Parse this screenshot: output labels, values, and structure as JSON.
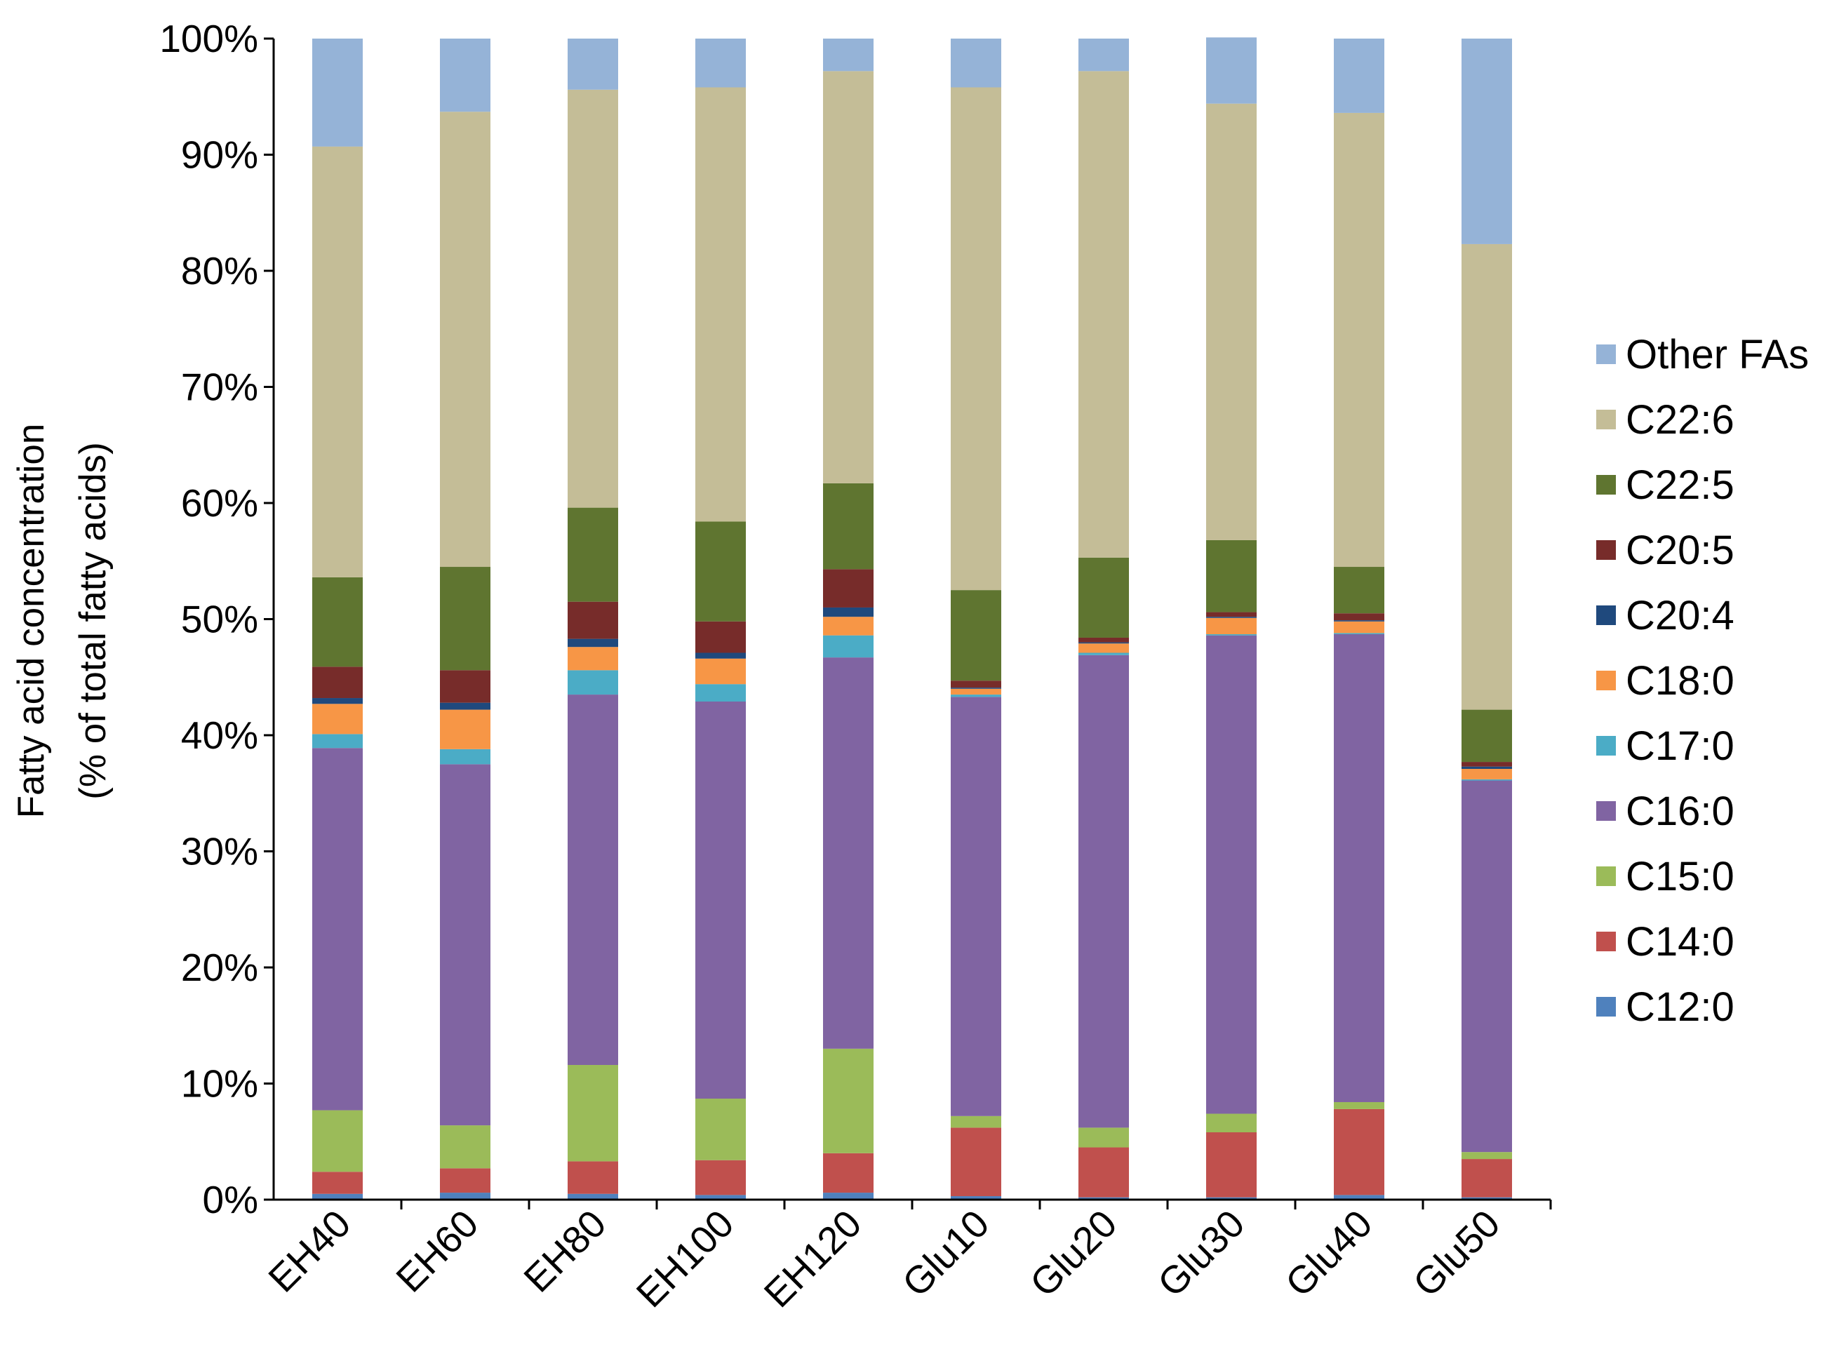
{
  "chart_data": {
    "type": "bar",
    "stacked": true,
    "title": "",
    "xlabel": "",
    "ylabel": "Fatty acid concentration",
    "ylabel_sub": "(% of total fatty acids)",
    "ylim": [
      0,
      100
    ],
    "grid": false,
    "legend_position": "right",
    "y_ticks": [
      "0%",
      "10%",
      "20%",
      "30%",
      "40%",
      "50%",
      "60%",
      "70%",
      "80%",
      "90%",
      "100%"
    ],
    "categories": [
      "EH40",
      "EH60",
      "EH80",
      "EH100",
      "EH120",
      "Glu10",
      "Glu20",
      "Glu30",
      "Glu40",
      "Glu50"
    ],
    "series": [
      {
        "name": "C12:0",
        "color": "#4F81BD",
        "values": [
          0.5,
          0.6,
          0.5,
          0.4,
          0.6,
          0.3,
          0.2,
          0.2,
          0.4,
          0.2
        ]
      },
      {
        "name": "C14:0",
        "color": "#C0504D",
        "values": [
          1.9,
          2.1,
          2.8,
          3.0,
          3.4,
          5.9,
          4.3,
          5.6,
          7.4,
          3.3
        ]
      },
      {
        "name": "C15:0",
        "color": "#9BBB59",
        "values": [
          5.3,
          3.7,
          8.3,
          5.3,
          9.0,
          1.0,
          1.7,
          1.6,
          0.6,
          0.6
        ]
      },
      {
        "name": "C16:0",
        "color": "#8064A2",
        "values": [
          31.2,
          31.1,
          31.9,
          34.2,
          33.7,
          36.1,
          40.7,
          41.2,
          40.3,
          32.0
        ]
      },
      {
        "name": "C17:0",
        "color": "#4BACC6",
        "values": [
          1.2,
          1.3,
          2.1,
          1.5,
          1.9,
          0.2,
          0.2,
          0.1,
          0.1,
          0.1
        ]
      },
      {
        "name": "C18:0",
        "color": "#F79646",
        "values": [
          2.6,
          3.4,
          2.0,
          2.2,
          1.6,
          0.5,
          0.8,
          1.4,
          1.0,
          0.9
        ]
      },
      {
        "name": "C20:4",
        "color": "#1F497D",
        "values": [
          0.5,
          0.6,
          0.7,
          0.5,
          0.8,
          0.1,
          0.1,
          0.1,
          0.1,
          0.2
        ]
      },
      {
        "name": "C20:5",
        "color": "#772C2A",
        "values": [
          2.7,
          2.8,
          3.2,
          2.7,
          3.3,
          0.6,
          0.4,
          0.4,
          0.6,
          0.4
        ]
      },
      {
        "name": "C22:5",
        "color": "#5F7530",
        "values": [
          7.7,
          8.9,
          8.1,
          8.6,
          7.4,
          7.8,
          6.9,
          6.2,
          4.0,
          4.5
        ]
      },
      {
        "name": "C22:6",
        "color": "#C4BD97",
        "values": [
          37.1,
          39.2,
          36.0,
          37.4,
          35.5,
          43.3,
          41.9,
          37.6,
          39.1,
          40.1
        ]
      },
      {
        "name": "Other FAs",
        "color": "#95B3D7",
        "values": [
          9.3,
          6.3,
          4.4,
          4.2,
          2.8,
          4.2,
          2.8,
          5.7,
          6.4,
          17.7
        ]
      }
    ]
  }
}
